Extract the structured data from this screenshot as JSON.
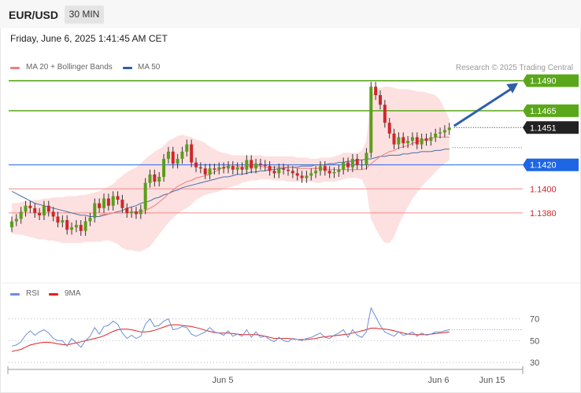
{
  "header": {
    "pair": "EUR/USD",
    "timeframe": "30 MIN",
    "timestamp": "Friday, June 6, 2025 1:41:45 AM CET"
  },
  "legend": {
    "ma20_label": "MA 20 + Bollinger Bands",
    "ma50_label": "MA 50",
    "credit": "Research © 2025 Trading Central",
    "rsi_label": "RSI",
    "rsi_ma_label": "9MA"
  },
  "colors": {
    "up_candle": "#5a9e1a",
    "down_candle": "#d0262c",
    "ma20": "#f08080",
    "ma50": "#4a6fa5",
    "bollinger_fill": "#fde0e0",
    "resistance": "#5aa719",
    "support_blue": "#1f66e5",
    "support_red": "#ef8c8c",
    "current_price": "#222222",
    "rsi": "#6b8fd8",
    "rsi_ma": "#e02020",
    "arrow": "#2f5fa8"
  },
  "chart_data": [
    {
      "type": "candlestick",
      "title": "EUR/USD 30 MIN",
      "ylim": [
        1.1325,
        1.1495
      ],
      "x_ticks": [
        "Jun 5",
        "Jun 6",
        "Jun 15"
      ],
      "levels": [
        {
          "label": "1.1490",
          "value": 1.149,
          "kind": "resistance"
        },
        {
          "label": "1.1465",
          "value": 1.1465,
          "kind": "resistance"
        },
        {
          "label": "1.1451",
          "value": 1.1451,
          "kind": "current"
        },
        {
          "label": "1.1420",
          "value": 1.142,
          "kind": "pivot"
        },
        {
          "label": "1.1400",
          "value": 1.14,
          "kind": "support"
        },
        {
          "label": "1.1380",
          "value": 1.138,
          "kind": "support"
        }
      ],
      "close": [
        1.1373,
        1.1375,
        1.1381,
        1.1386,
        1.1384,
        1.138,
        1.1378,
        1.1386,
        1.1381,
        1.1377,
        1.1372,
        1.1374,
        1.1366,
        1.1368,
        1.137,
        1.1365,
        1.1373,
        1.1376,
        1.1388,
        1.1384,
        1.1392,
        1.1386,
        1.1394,
        1.1391,
        1.1384,
        1.138,
        1.1381,
        1.1379,
        1.1383,
        1.1405,
        1.1412,
        1.1406,
        1.141,
        1.1425,
        1.1431,
        1.1421,
        1.1425,
        1.1431,
        1.1437,
        1.1422,
        1.1418,
        1.1417,
        1.1412,
        1.1417,
        1.1416,
        1.1418,
        1.1417,
        1.1419,
        1.1416,
        1.1418,
        1.1416,
        1.1424,
        1.1417,
        1.1421,
        1.142,
        1.1419,
        1.1415,
        1.1413,
        1.1417,
        1.1416,
        1.1415,
        1.1413,
        1.1411,
        1.1409,
        1.1411,
        1.1413,
        1.1415,
        1.1419,
        1.1415,
        1.1413,
        1.1414,
        1.1416,
        1.1422,
        1.1418,
        1.1425,
        1.142,
        1.142,
        1.143,
        1.1485,
        1.1478,
        1.147,
        1.1455,
        1.1446,
        1.1437,
        1.1443,
        1.1438,
        1.144,
        1.1443,
        1.1437,
        1.1442,
        1.144,
        1.1443,
        1.1446,
        1.1447,
        1.1449,
        1.1451
      ],
      "ma20": [
        null,
        null,
        null,
        null,
        null,
        null,
        null,
        null,
        null,
        null,
        null,
        null,
        null,
        null,
        null,
        null,
        null,
        null,
        null,
        1.1378,
        1.1379,
        1.1379,
        1.138,
        1.138,
        1.138,
        1.138,
        1.1381,
        1.1381,
        1.1381,
        1.1382,
        1.1384,
        1.1386,
        1.1389,
        1.1392,
        1.1396,
        1.1399,
        1.1402,
        1.1404,
        1.1406,
        1.1407,
        1.1409,
        1.141,
        1.1411,
        1.1412,
        1.1414,
        1.1416,
        1.1418,
        1.1419,
        1.142,
        1.1419,
        1.1418,
        1.1419,
        1.1419,
        1.1419,
        1.1419,
        1.1418,
        1.1418,
        1.1418,
        1.1418,
        1.1418,
        1.1418,
        1.1418,
        1.1417,
        1.1417,
        1.1417,
        1.1417,
        1.1417,
        1.1417,
        1.1416,
        1.1416,
        1.1416,
        1.1416,
        1.1416,
        1.1416,
        1.1416,
        1.1416,
        1.1416,
        1.1417,
        1.1421,
        1.1424,
        1.1427,
        1.1429,
        1.1431,
        1.1432,
        1.1434,
        1.1435,
        1.1436,
        1.1438,
        1.1439,
        1.144,
        1.1441,
        1.1442,
        1.1443,
        1.1443,
        1.1443,
        1.1443
      ],
      "ma50": [
        1.1398,
        1.1396,
        1.1394,
        1.1392,
        1.139,
        1.1388,
        1.1387,
        1.1386,
        1.1385,
        1.1384,
        1.1383,
        1.1382,
        1.1381,
        1.138,
        1.1379,
        1.1378,
        1.1378,
        1.1377,
        1.1377,
        1.1377,
        1.1378,
        1.1379,
        1.138,
        1.1381,
        1.1382,
        1.1384,
        1.1385,
        1.1386,
        1.1388,
        1.1389,
        1.139,
        1.1392,
        1.1393,
        1.1395,
        1.1396,
        1.1398,
        1.1399,
        1.1401,
        1.1402,
        1.1403,
        1.1404,
        1.1405,
        1.1406,
        1.1407,
        1.1408,
        1.1409,
        1.141,
        1.141,
        1.1411,
        1.1412,
        1.1412,
        1.1413,
        1.1414,
        1.1414,
        1.1415,
        1.1415,
        1.1416,
        1.1416,
        1.1417,
        1.1417,
        1.1418,
        1.1418,
        1.1418,
        1.1419,
        1.1419,
        1.1419,
        1.142,
        1.142,
        1.142,
        1.1421,
        1.1421,
        1.1422,
        1.1422,
        1.1423,
        1.1423,
        1.1424,
        1.1424,
        1.1425,
        1.1425,
        1.1426,
        1.1427,
        1.1427,
        1.1428,
        1.1428,
        1.1428,
        1.1429,
        1.1429,
        1.143,
        1.143,
        1.1431,
        1.1431,
        1.1431,
        1.1432,
        1.1432,
        1.1433,
        1.1433
      ],
      "bollinger_upper": [
        1.1388,
        1.1388,
        1.1389,
        1.139,
        1.139,
        1.1391,
        1.1391,
        1.1392,
        1.1392,
        1.1393,
        1.1393,
        1.1393,
        1.1394,
        1.1394,
        1.1394,
        1.1395,
        1.1395,
        1.1396,
        1.1397,
        1.1398,
        1.14,
        1.1402,
        1.1404,
        1.1408,
        1.1411,
        1.1414,
        1.1416,
        1.1418,
        1.1421,
        1.1425,
        1.1428,
        1.1431,
        1.1433,
        1.1436,
        1.144,
        1.1442,
        1.1444,
        1.1445,
        1.1444,
        1.1443,
        1.1441,
        1.144,
        1.1438,
        1.1435,
        1.1433,
        1.1431,
        1.143,
        1.1429,
        1.1428,
        1.1428,
        1.1428,
        1.1428,
        1.1428,
        1.1428,
        1.1428,
        1.1427,
        1.1427,
        1.1427,
        1.1427,
        1.1427,
        1.1427,
        1.1427,
        1.1426,
        1.1426,
        1.1426,
        1.1425,
        1.1425,
        1.1426,
        1.1426,
        1.1426,
        1.1427,
        1.1428,
        1.143,
        1.143,
        1.143,
        1.143,
        1.1432,
        1.144,
        1.1478,
        1.1482,
        1.1484,
        1.1485,
        1.1485,
        1.1484,
        1.1483,
        1.1483,
        1.1483,
        1.1482,
        1.1481,
        1.1481,
        1.148,
        1.1479,
        1.1478,
        1.1474,
        1.1466,
        1.1458
      ],
      "bollinger_lower": [
        1.1363,
        1.1362,
        1.1362,
        1.1361,
        1.136,
        1.1359,
        1.1358,
        1.1358,
        1.1357,
        1.1357,
        1.1356,
        1.1355,
        1.1355,
        1.1355,
        1.1355,
        1.1355,
        1.1356,
        1.1356,
        1.1356,
        1.1356,
        1.1357,
        1.1357,
        1.1356,
        1.1354,
        1.1351,
        1.1349,
        1.1349,
        1.1348,
        1.1348,
        1.135,
        1.1352,
        1.1357,
        1.1362,
        1.1367,
        1.1372,
        1.1376,
        1.1379,
        1.1382,
        1.1384,
        1.1387,
        1.1391,
        1.1393,
        1.1395,
        1.1396,
        1.1397,
        1.1398,
        1.14,
        1.1401,
        1.1402,
        1.1403,
        1.1405,
        1.1406,
        1.1407,
        1.1407,
        1.1408,
        1.1408,
        1.1408,
        1.1407,
        1.1407,
        1.1407,
        1.1406,
        1.1406,
        1.1406,
        1.1406,
        1.1406,
        1.1406,
        1.1405,
        1.1405,
        1.1406,
        1.1406,
        1.1406,
        1.1407,
        1.1408,
        1.1409,
        1.1409,
        1.1409,
        1.1408,
        1.14,
        1.1375,
        1.1367,
        1.136,
        1.1355,
        1.1355,
        1.136,
        1.137,
        1.1378,
        1.1385,
        1.1392,
        1.1397,
        1.1402,
        1.1406,
        1.141,
        1.1414,
        1.1418,
        1.1421,
        1.1424
      ]
    },
    {
      "type": "line",
      "title": "RSI",
      "ylim": [
        25,
        90
      ],
      "y_ticks": [
        30,
        50,
        70
      ],
      "series": [
        {
          "name": "RSI",
          "values": [
            45,
            46,
            49,
            55,
            59,
            55,
            58,
            60,
            57,
            52,
            50,
            50,
            45,
            52,
            48,
            44,
            50,
            54,
            62,
            56,
            63,
            64,
            68,
            65,
            57,
            52,
            55,
            52,
            54,
            65,
            70,
            63,
            64,
            68,
            70,
            60,
            61,
            63,
            62,
            56,
            54,
            56,
            58,
            62,
            58,
            57,
            55,
            59,
            54,
            56,
            54,
            60,
            53,
            58,
            53,
            54,
            51,
            49,
            53,
            50,
            49,
            52,
            51,
            50,
            52,
            53,
            55,
            57,
            53,
            52,
            55,
            57,
            60,
            53,
            60,
            55,
            53,
            58,
            80,
            72,
            64,
            58,
            56,
            54,
            58,
            55,
            56,
            58,
            54,
            57,
            55,
            56,
            58,
            58,
            59,
            60
          ]
        },
        {
          "name": "9MA",
          "values": [
            40,
            41,
            42,
            44,
            46,
            47,
            48,
            48.5,
            48.5,
            48,
            47,
            46.5,
            46,
            47,
            48,
            49,
            50,
            51,
            52,
            53,
            54.5,
            56.5,
            58.5,
            60,
            60.5,
            60.5,
            60,
            59,
            58,
            58,
            58.5,
            59.5,
            61,
            62.5,
            64,
            64.5,
            64.5,
            64,
            63.5,
            63,
            62,
            61,
            59.5,
            58.5,
            57.5,
            57,
            57,
            57,
            56.5,
            56,
            55.5,
            55.5,
            55.5,
            55.5,
            55,
            54,
            53,
            52,
            52,
            52,
            52,
            51.5,
            51,
            51,
            51,
            51.5,
            52,
            53,
            53.5,
            54,
            54.5,
            55,
            55.5,
            56,
            57,
            58,
            59,
            60,
            61.5,
            61.5,
            61,
            60.5,
            60,
            59,
            58,
            57,
            56,
            56,
            55.5,
            55.5,
            55.5,
            56,
            56.5,
            57,
            57.5,
            58
          ]
        }
      ]
    }
  ]
}
